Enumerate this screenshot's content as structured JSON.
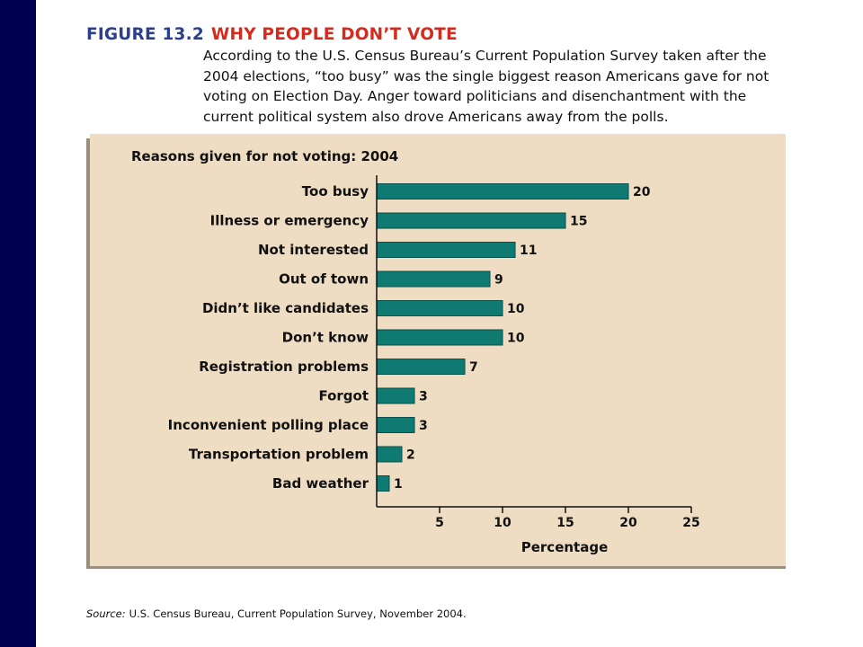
{
  "figure": {
    "number": "FIGURE 13.2",
    "title": "WHY PEOPLE DON’T VOTE",
    "caption": "According to the U.S. Census Bureau’s Current Population Survey taken after the 2004 elections, “too busy” was the single biggest reason Americans gave for not voting on Election Day. Anger toward politicians and disenchantment with the current political system also drove Americans away from the polls."
  },
  "source": {
    "label": "Source:",
    "text": "U.S. Census Bureau, Current Population Survey, November 2004."
  },
  "colors": {
    "side_band": "#000050",
    "figure_number": "#2b3f8f",
    "figure_title": "#d52b1e",
    "panel_background": "#eeddc3",
    "bar_fill": "#0f7a72",
    "bar_edge": "#0a4f4a"
  },
  "chart_data": {
    "type": "bar",
    "orientation": "horizontal",
    "title": "Reasons given for not voting: 2004",
    "xlabel": "Percentage",
    "ylabel": "",
    "xlim": [
      0,
      25
    ],
    "xticks": [
      5,
      10,
      15,
      20,
      25
    ],
    "grid": false,
    "legend": "none",
    "categories": [
      "Too busy",
      "Illness or emergency",
      "Not interested",
      "Out of town",
      "Didn’t like candidates",
      "Don’t know",
      "Registration problems",
      "Forgot",
      "Inconvenient polling place",
      "Transportation problem",
      "Bad weather"
    ],
    "values": [
      20,
      15,
      11,
      9,
      10,
      10,
      7,
      3,
      3,
      2,
      1
    ],
    "value_labels": [
      "20",
      "15",
      "11",
      "9",
      "10",
      "10",
      "7",
      "3",
      "3",
      "2",
      "1"
    ]
  }
}
